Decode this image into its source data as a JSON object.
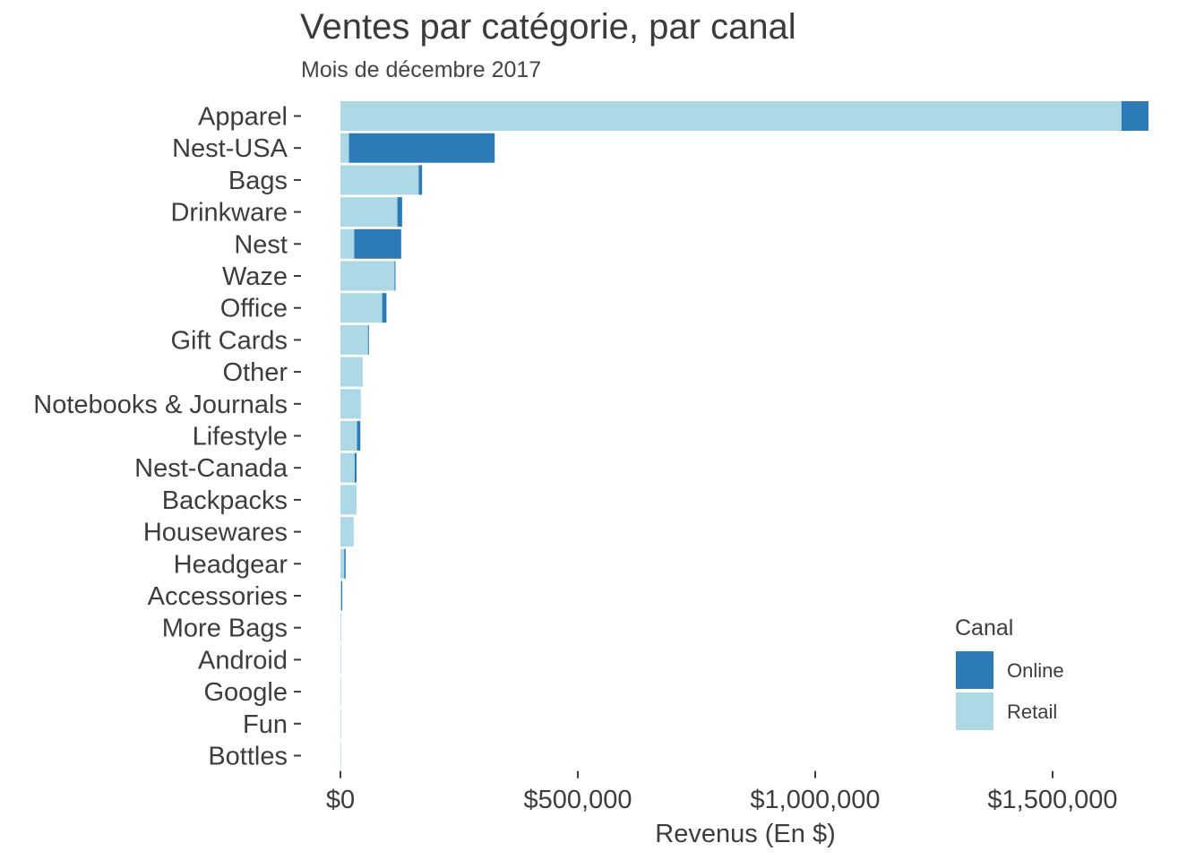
{
  "chart_data": {
    "type": "bar",
    "orientation": "horizontal",
    "stacked": true,
    "title": "Ventes par catégorie, par canal",
    "subtitle": "Mois de décembre 2017",
    "xlabel": "Revenus (En $)",
    "ylabel": "",
    "xlim": [
      0,
      1700000
    ],
    "x_ticks": [
      0,
      500000,
      1000000,
      1500000
    ],
    "x_tick_labels": [
      "$0",
      "$500,000",
      "$1,000,000",
      "$1,500,000"
    ],
    "grid": false,
    "legend": {
      "title": "Canal",
      "placement": "bottom-right"
    },
    "categories": [
      "Apparel",
      "Nest-USA",
      "Bags",
      "Drinkware",
      "Nest",
      "Waze",
      "Office",
      "Gift Cards",
      "Other",
      "Notebooks & Journals",
      "Lifestyle",
      "Nest-Canada",
      "Backpacks",
      "Housewares",
      "Headgear",
      "Accessories",
      "More Bags",
      "Android",
      "Google",
      "Fun",
      "Bottles"
    ],
    "series": [
      {
        "name": "Retail",
        "color": "#ADD8E6",
        "values": [
          1645000,
          18000,
          165000,
          120000,
          29000,
          114000,
          88000,
          58000,
          47000,
          43000,
          35000,
          30000,
          34000,
          28000,
          8000,
          2000,
          1500,
          1200,
          800,
          300,
          100
        ]
      },
      {
        "name": "Online",
        "color": "#2C7BB6",
        "values": [
          57000,
          307000,
          7000,
          10000,
          99000,
          2000,
          9000,
          2000,
          0,
          0,
          7000,
          4000,
          0,
          0,
          3000,
          2000,
          0,
          0,
          0,
          0,
          0
        ]
      }
    ]
  }
}
